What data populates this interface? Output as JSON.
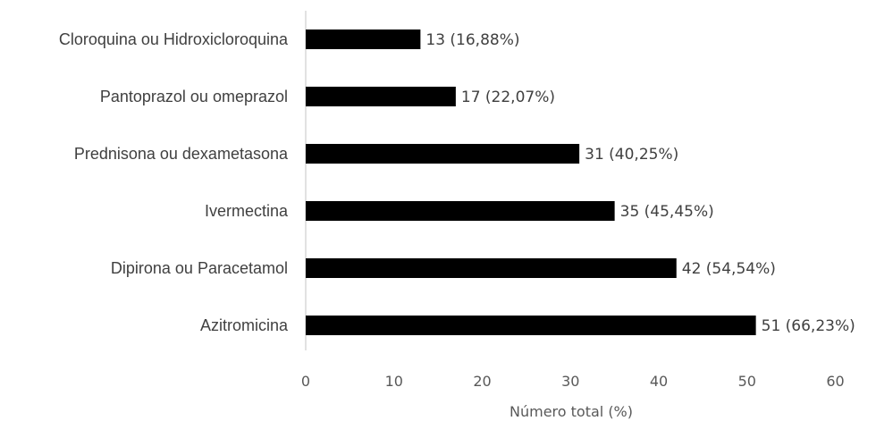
{
  "chart_data": {
    "type": "bar",
    "orientation": "horizontal",
    "categories": [
      "Cloroquina ou Hidroxicloroquina",
      "Pantoprazol ou omeprazol",
      "Prednisona ou dexametasona",
      "Ivermectina",
      "Dipirona ou Paracetamol",
      "Azitromicina"
    ],
    "values": [
      13,
      17,
      31,
      35,
      42,
      51
    ],
    "data_labels": [
      "13 (16,88%)",
      "17 (22,07%)",
      "31 (40,25%)",
      "35 (45,45%)",
      "42 (54,54%)",
      "51 (66,23%)"
    ],
    "xlabel": "Número total (%)",
    "xlim": [
      0,
      60
    ],
    "xticks": [
      "0",
      "10",
      "20",
      "30",
      "40",
      "50",
      "60"
    ],
    "grid": false,
    "bar_color": "#000000",
    "axis_color": "#d9d9d9"
  }
}
